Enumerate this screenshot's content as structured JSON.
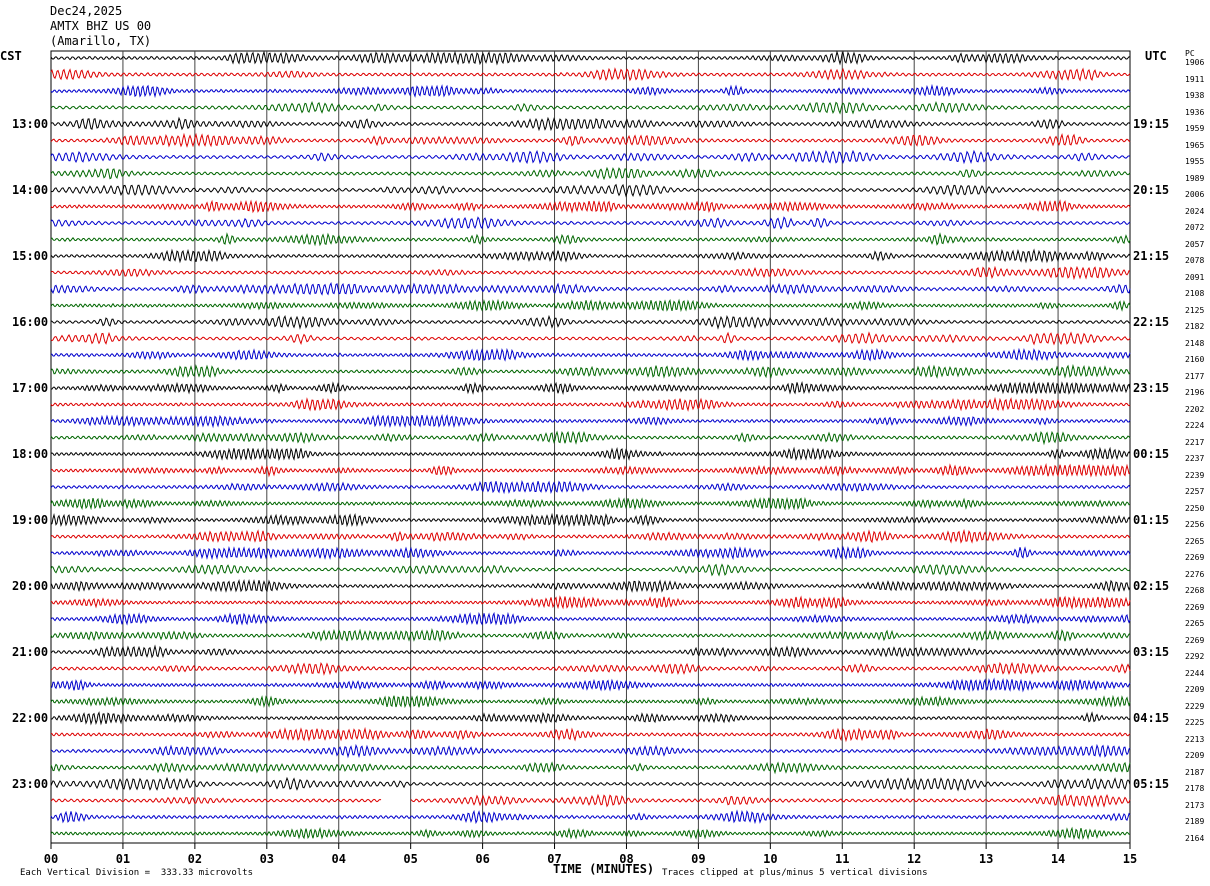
{
  "header": {
    "date": "Dec24,2025",
    "station": "AMTX BHZ US 00",
    "location": "(Amarillo, TX)"
  },
  "left_axis_label": "CST",
  "right_axis_label": "UTC",
  "pc_label": "PC",
  "footer": {
    "division": "Each Vertical Division =  333.33 microvolts",
    "clip": "Traces clipped at plus/minus 5 vertical divisions"
  },
  "chart_data": {
    "type": "line",
    "title": "",
    "xlabel": "TIME (MINUTES)",
    "xlim": [
      0,
      15
    ],
    "x_ticks": [
      "00",
      "01",
      "02",
      "03",
      "04",
      "05",
      "06",
      "07",
      "08",
      "09",
      "10",
      "11",
      "12",
      "13",
      "14",
      "15"
    ],
    "trace_count": 48,
    "trace_colors": [
      "#000000",
      "#dd0000",
      "#0000cc",
      "#006600"
    ],
    "left_hour_labels": [
      "13:00",
      "14:00",
      "15:00",
      "16:00",
      "17:00",
      "18:00",
      "19:00",
      "20:00",
      "21:00",
      "22:00",
      "23:00"
    ],
    "right_hour_labels": [
      "19:15",
      "20:15",
      "21:15",
      "22:15",
      "23:15",
      "00:15",
      "01:15",
      "02:15",
      "03:15",
      "04:15",
      "05:15"
    ],
    "right_trace_values": [
      "1906",
      "1911",
      "1938",
      "1936",
      "1959",
      "1965",
      "1955",
      "1989",
      "2006",
      "2024",
      "2072",
      "2057",
      "2078",
      "2091",
      "2108",
      "2125",
      "2182",
      "2148",
      "2160",
      "2177",
      "2196",
      "2202",
      "2224",
      "2217",
      "2237",
      "2239",
      "2257",
      "2250",
      "2256",
      "2265",
      "2269",
      "2276",
      "2268",
      "2269",
      "2265",
      "2269",
      "2292",
      "2244",
      "2209",
      "2229",
      "2225",
      "2213",
      "2209",
      "2187",
      "2178",
      "2173",
      "2189",
      "2164"
    ],
    "gap": {
      "trace_index": 45,
      "x_start": 4.6,
      "x_end": 5.0
    }
  }
}
